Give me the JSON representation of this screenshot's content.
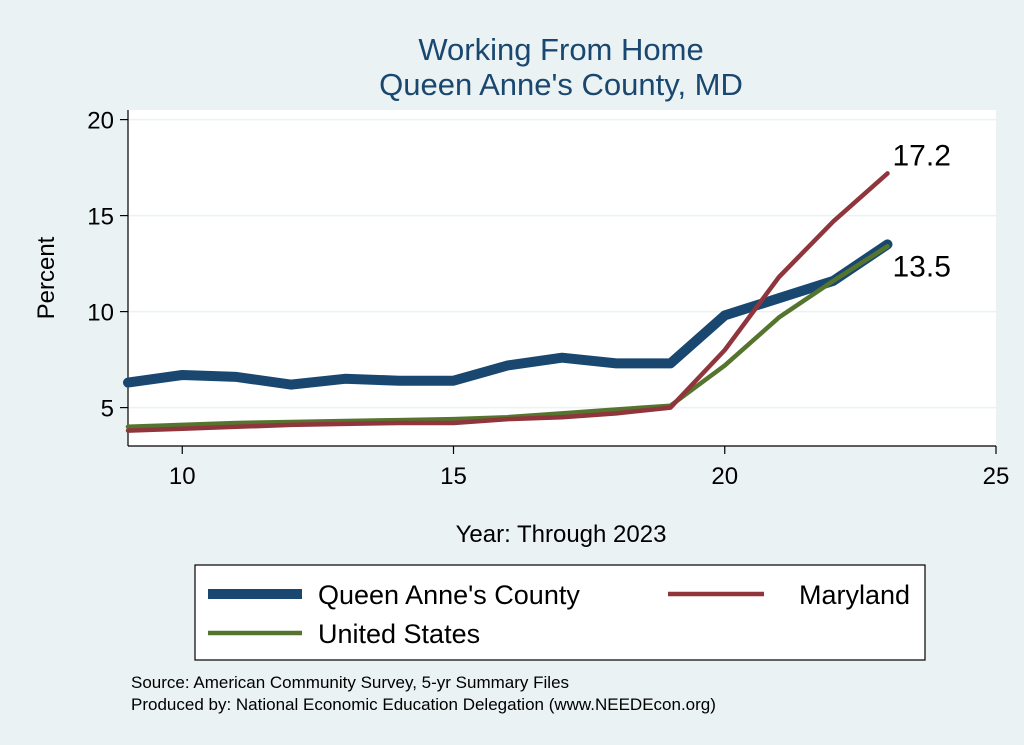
{
  "chart_data": {
    "type": "line",
    "title": [
      "Working From Home",
      "Queen Anne's County, MD"
    ],
    "xlabel": "Year: Through 2023",
    "ylabel": "Percent",
    "xlim": [
      9,
      25
    ],
    "ylim": [
      3.0,
      20.5
    ],
    "xticks": [
      10,
      15,
      20,
      25
    ],
    "yticks": [
      5,
      10,
      15,
      20
    ],
    "grid": true,
    "legend_position": "bottom",
    "series": [
      {
        "name": "Queen Anne's County",
        "color": "#1a476f",
        "x": [
          9,
          10,
          11,
          12,
          13,
          14,
          15,
          16,
          17,
          18,
          19,
          20,
          21,
          22,
          23
        ],
        "y": [
          6.3,
          6.7,
          6.6,
          6.2,
          6.5,
          6.4,
          6.4,
          7.2,
          7.6,
          7.3,
          7.3,
          9.8,
          10.7,
          11.6,
          13.5
        ]
      },
      {
        "name": "Maryland",
        "color": "#90353b",
        "x": [
          9,
          10,
          11,
          12,
          13,
          14,
          15,
          16,
          17,
          18,
          19,
          20,
          21,
          22,
          23
        ],
        "y": [
          3.8,
          3.9,
          4.0,
          4.1,
          4.15,
          4.2,
          4.2,
          4.4,
          4.5,
          4.7,
          5.0,
          8.0,
          11.8,
          14.7,
          17.2
        ]
      },
      {
        "name": "United States",
        "color": "#55752f",
        "x": [
          9,
          10,
          11,
          12,
          13,
          14,
          15,
          16,
          17,
          18,
          19,
          20,
          21,
          22,
          23
        ],
        "y": [
          4.0,
          4.1,
          4.2,
          4.25,
          4.3,
          4.35,
          4.4,
          4.5,
          4.7,
          4.9,
          5.1,
          7.2,
          9.7,
          11.6,
          13.4
        ]
      }
    ],
    "end_labels": [
      {
        "text": "17.2",
        "x": 23,
        "y": 17.2
      },
      {
        "text": "13.5",
        "x": 23,
        "y": 13.5
      }
    ],
    "notes": [
      "Source: American Community Survey, 5-yr Summary Files",
      "Produced by: National Economic Education Delegation (www.NEEDEcon.org)"
    ]
  }
}
